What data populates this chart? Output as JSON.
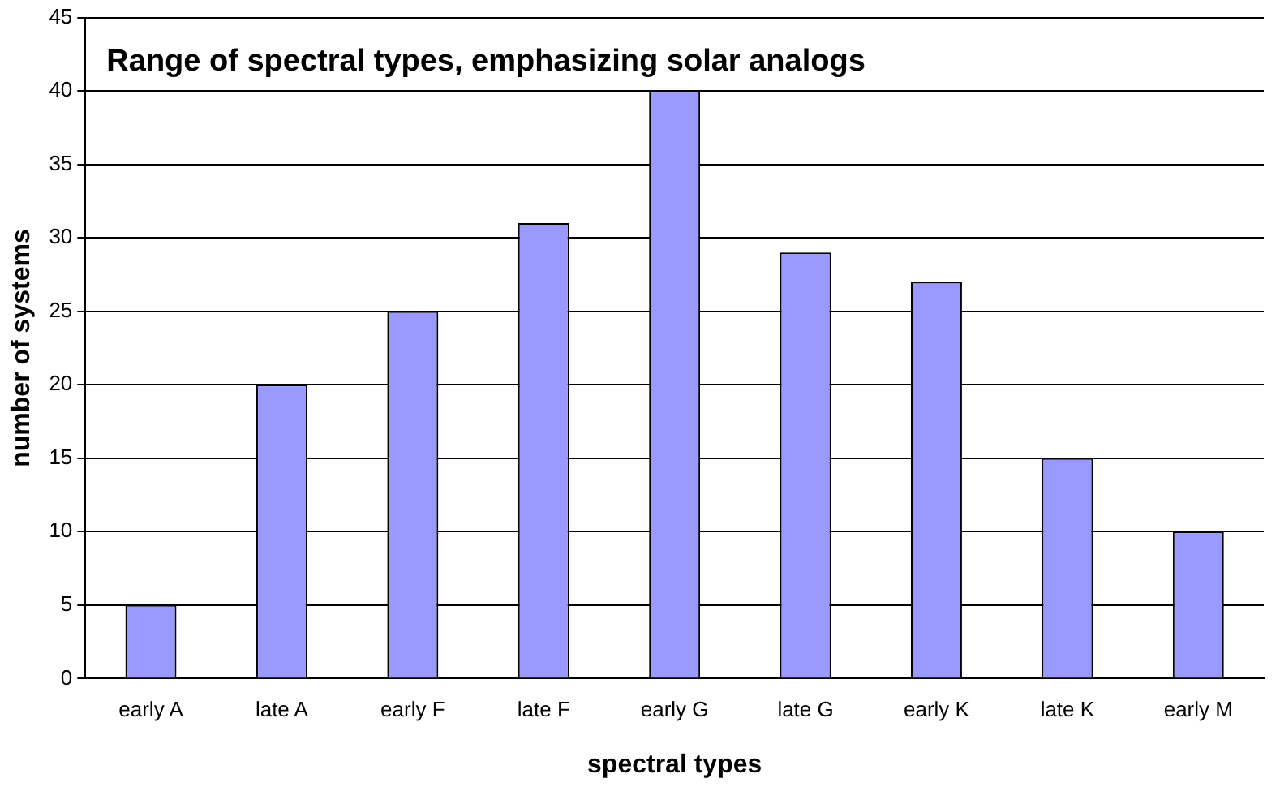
{
  "chart_data": {
    "type": "bar",
    "title": "Range of spectral types, emphasizing solar analogs",
    "xlabel": "spectral types",
    "ylabel": "number of systems",
    "categories": [
      "early A",
      "late A",
      "early F",
      "late F",
      "early G",
      "late G",
      "early K",
      "late K",
      "early M"
    ],
    "values": [
      5,
      20,
      25,
      31,
      40,
      29,
      27,
      15,
      10
    ],
    "color": "#9999ff",
    "ylim": [
      0,
      45
    ],
    "yticks": [
      0,
      5,
      10,
      15,
      20,
      25,
      30,
      35,
      40,
      45
    ],
    "grid": "y",
    "legend": false
  }
}
